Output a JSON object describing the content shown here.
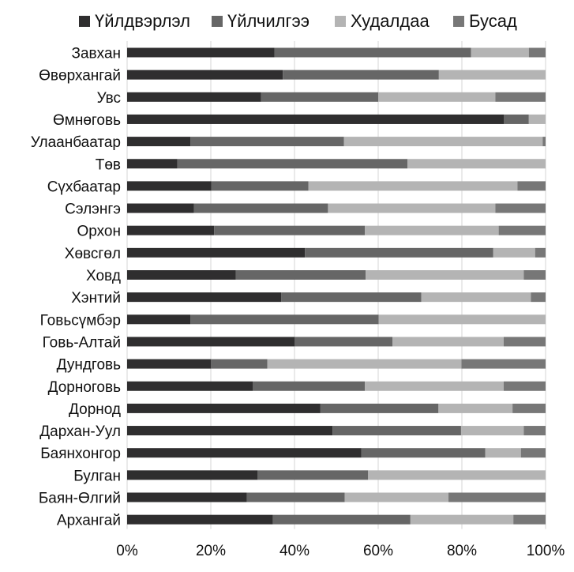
{
  "chart_data": {
    "type": "bar",
    "orientation": "horizontal",
    "stacked": true,
    "percent": true,
    "title": "",
    "xlabel": "",
    "ylabel": "",
    "xlim": [
      0,
      100
    ],
    "x_ticks": [
      "0%",
      "20%",
      "40%",
      "60%",
      "80%",
      "100%"
    ],
    "grid": true,
    "legend_position": "top",
    "categories": [
      "Завхан",
      "Өвөрхангай",
      "Увс",
      "Өмнөговь",
      "Улаанбаатар",
      "Төв",
      "Сүхбаатар",
      "Сэлэнгэ",
      "Орхон",
      "Хөвсгөл",
      "Ховд",
      "Хэнтий",
      "Говьсүмбэр",
      "Говь-Алтай",
      "Дундговь",
      "Дорноговь",
      "Дорнод",
      "Дархан-Уул",
      "Баянхонгор",
      "Булган",
      "Баян-Өлгий",
      "Архангай"
    ],
    "series": [
      {
        "name": "Үйлдвэрлэл",
        "color": "#2f2e2f",
        "values": [
          35.2,
          37.2,
          32.0,
          90.0,
          15.1,
          12.0,
          20.1,
          16.0,
          20.8,
          42.5,
          26.0,
          36.8,
          15.1,
          40.0,
          20.0,
          30.0,
          46.2,
          49.1,
          56.0,
          31.2,
          28.6,
          34.8
        ]
      },
      {
        "name": "Үйлчилгээ",
        "color": "#666666",
        "values": [
          47.0,
          37.3,
          28.0,
          6.0,
          36.7,
          55.0,
          23.2,
          32.0,
          36.0,
          45.0,
          31.0,
          33.5,
          45.0,
          23.4,
          13.5,
          26.8,
          28.2,
          30.7,
          29.6,
          26.4,
          23.4,
          32.9
        ]
      },
      {
        "name": "Худалдаа",
        "color": "#b4b4b4",
        "values": [
          13.8,
          25.5,
          28.0,
          4.0,
          47.5,
          33.0,
          50.0,
          40.0,
          32.0,
          10.0,
          37.8,
          26.2,
          39.9,
          26.6,
          46.4,
          33.2,
          17.7,
          15.0,
          8.5,
          42.4,
          24.8,
          24.6
        ]
      },
      {
        "name": "Бусад",
        "color": "#777777",
        "values": [
          4.0,
          0.0,
          12.0,
          0.0,
          0.7,
          0.0,
          6.7,
          12.0,
          11.2,
          2.5,
          5.2,
          3.5,
          0.0,
          10.0,
          20.1,
          10.0,
          7.9,
          5.2,
          5.9,
          0.0,
          23.2,
          7.7
        ]
      }
    ]
  }
}
